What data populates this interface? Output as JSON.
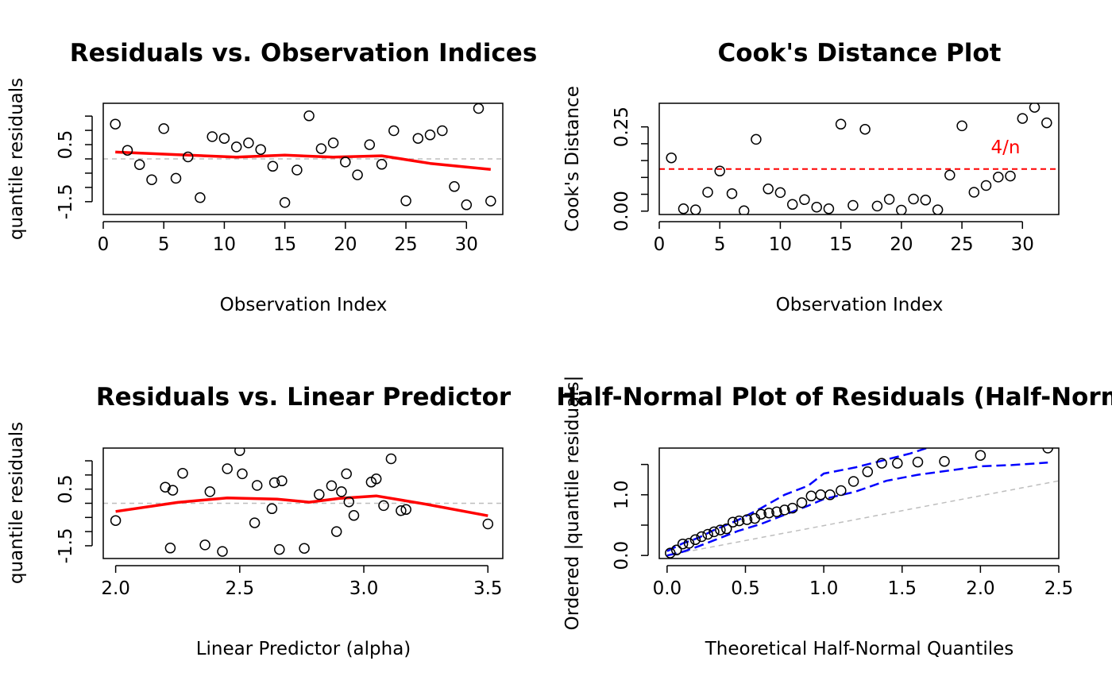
{
  "chart_data": [
    {
      "id": "p1",
      "type": "scatter",
      "title": "Residuals vs. Observation Indices",
      "xlabel": "Observation Index",
      "ylabel": "quantile residuals",
      "xlim": [
        0,
        33
      ],
      "ylim": [
        -1.95,
        1.95
      ],
      "x_ticks": [
        0,
        5,
        10,
        15,
        20,
        25,
        30
      ],
      "x_tick_labels": [
        "0",
        "5",
        "10",
        "15",
        "20",
        "25",
        "30"
      ],
      "y_ticks": [
        -1.5,
        -1.0,
        -0.5,
        0.0,
        0.5,
        1.0,
        1.5
      ],
      "y_tick_labels": [
        "-1.5",
        "",
        "",
        "",
        "0.5",
        "",
        ""
      ],
      "x": [
        1,
        2,
        3,
        4,
        5,
        6,
        7,
        8,
        9,
        10,
        11,
        12,
        13,
        14,
        15,
        16,
        17,
        18,
        19,
        20,
        21,
        22,
        23,
        24,
        25,
        26,
        27,
        28,
        29,
        30,
        31,
        32
      ],
      "y": [
        1.22,
        0.3,
        -0.2,
        -0.73,
        1.06,
        -0.68,
        0.07,
        -1.36,
        0.78,
        0.72,
        0.42,
        0.56,
        0.33,
        -0.26,
        -1.53,
        -0.39,
        1.51,
        0.36,
        0.56,
        -0.11,
        -0.56,
        0.5,
        -0.19,
        0.99,
        -1.47,
        0.72,
        0.84,
        0.99,
        -0.97,
        -1.61,
        1.77,
        -1.48
      ],
      "hline": {
        "y": 0,
        "color": "#bebebe"
      },
      "smooth": {
        "color": "#ff0000",
        "x": [
          1,
          6,
          11,
          15,
          19,
          23,
          27,
          32
        ],
        "y": [
          0.24,
          0.15,
          0.06,
          0.13,
          0.06,
          0.11,
          -0.16,
          -0.37
        ]
      }
    },
    {
      "id": "p2",
      "type": "scatter",
      "title": "Cook's Distance Plot",
      "xlabel": "Observation Index",
      "ylabel": "Cook's Distance",
      "xlim": [
        0,
        33
      ],
      "ylim": [
        -0.01,
        0.32
      ],
      "x_ticks": [
        0,
        5,
        10,
        15,
        20,
        25,
        30
      ],
      "x_tick_labels": [
        "0",
        "5",
        "10",
        "15",
        "20",
        "25",
        "30"
      ],
      "y_ticks": [
        0.0,
        0.05,
        0.1,
        0.15,
        0.2,
        0.25
      ],
      "y_tick_labels": [
        "0.00",
        "",
        "",
        "",
        "",
        "0.25"
      ],
      "x": [
        1,
        2,
        3,
        4,
        5,
        6,
        7,
        8,
        9,
        10,
        11,
        12,
        13,
        14,
        15,
        16,
        17,
        18,
        19,
        20,
        21,
        22,
        23,
        24,
        25,
        26,
        27,
        28,
        29,
        30,
        31,
        32
      ],
      "y": [
        0.158,
        0.007,
        0.004,
        0.056,
        0.119,
        0.052,
        0.001,
        0.213,
        0.066,
        0.055,
        0.02,
        0.034,
        0.012,
        0.007,
        0.258,
        0.017,
        0.243,
        0.015,
        0.035,
        0.003,
        0.036,
        0.033,
        0.004,
        0.107,
        0.253,
        0.056,
        0.076,
        0.101,
        0.104,
        0.275,
        0.308,
        0.262
      ],
      "hline": {
        "y": 0.125,
        "color": "#ff0000",
        "label": "4/n"
      }
    },
    {
      "id": "p3",
      "type": "scatter",
      "title": "Residuals vs. Linear Predictor",
      "xlabel": "Linear Predictor (alpha)",
      "ylabel": "quantile residuals",
      "xlim": [
        1.95,
        3.56
      ],
      "ylim": [
        -1.95,
        1.95
      ],
      "x_ticks": [
        2.0,
        2.5,
        3.0,
        3.5
      ],
      "x_tick_labels": [
        "2.0",
        "2.5",
        "3.0",
        "3.5"
      ],
      "y_ticks": [
        -1.5,
        -1.0,
        -0.5,
        0.0,
        0.5,
        1.0,
        1.5
      ],
      "y_tick_labels": [
        "-1.5",
        "",
        "",
        "",
        "0.5",
        "",
        ""
      ],
      "x": [
        2.0,
        2.2,
        2.22,
        2.23,
        2.27,
        2.36,
        2.38,
        2.43,
        2.45,
        2.5,
        2.51,
        2.56,
        2.57,
        2.63,
        2.64,
        2.66,
        2.67,
        2.76,
        2.82,
        2.87,
        2.89,
        2.91,
        2.93,
        2.94,
        2.96,
        3.03,
        3.05,
        3.08,
        3.11,
        3.15,
        3.17,
        3.5
      ],
      "y": [
        -0.61,
        0.57,
        -1.58,
        0.46,
        1.06,
        -1.47,
        0.41,
        -1.7,
        1.22,
        1.86,
        1.04,
        -0.69,
        0.63,
        -0.19,
        0.73,
        -1.63,
        0.79,
        -1.59,
        0.31,
        0.62,
        -1.0,
        0.41,
        1.04,
        0.05,
        -0.43,
        0.75,
        0.86,
        -0.08,
        1.57,
        -0.26,
        -0.22,
        -0.73
      ],
      "hline": {
        "y": 0,
        "color": "#bebebe"
      },
      "smooth": {
        "color": "#ff0000",
        "x": [
          2.0,
          2.25,
          2.45,
          2.65,
          2.78,
          2.9,
          3.05,
          3.25,
          3.5
        ],
        "y": [
          -0.29,
          0.03,
          0.19,
          0.15,
          0.04,
          0.17,
          0.26,
          -0.03,
          -0.44
        ]
      }
    },
    {
      "id": "p4",
      "type": "scatter",
      "title": "Half-Normal Plot of Residuals (Half-Normal)",
      "xlabel": "Theoretical Half-Normal Quantiles",
      "ylabel": "Ordered |quantile residuals|",
      "xlim": [
        -0.05,
        2.5
      ],
      "ylim": [
        -0.05,
        1.77
      ],
      "x_ticks": [
        0.0,
        0.5,
        1.0,
        1.5,
        2.0,
        2.5
      ],
      "x_tick_labels": [
        "0.0",
        "0.5",
        "1.0",
        "1.5",
        "2.0",
        "2.5"
      ],
      "y_ticks": [
        0.0,
        0.5,
        1.0,
        1.5
      ],
      "y_tick_labels": [
        "0.0",
        "",
        "1.0",
        ""
      ],
      "x": [
        0.02,
        0.06,
        0.1,
        0.14,
        0.18,
        0.22,
        0.26,
        0.3,
        0.34,
        0.38,
        0.42,
        0.46,
        0.51,
        0.56,
        0.6,
        0.65,
        0.7,
        0.75,
        0.8,
        0.86,
        0.92,
        0.98,
        1.04,
        1.11,
        1.19,
        1.28,
        1.37,
        1.47,
        1.6,
        1.77,
        2.0,
        2.43
      ],
      "y": [
        0.04,
        0.09,
        0.19,
        0.2,
        0.26,
        0.31,
        0.35,
        0.39,
        0.42,
        0.44,
        0.55,
        0.57,
        0.59,
        0.61,
        0.68,
        0.7,
        0.72,
        0.75,
        0.78,
        0.87,
        0.98,
        1.0,
        1.0,
        1.07,
        1.22,
        1.38,
        1.52,
        1.52,
        1.54,
        1.55,
        1.65,
        1.77
      ],
      "reference_line": {
        "color": "#bebebe",
        "x": [
          0,
          2.5
        ],
        "y": [
          0,
          1.23
        ]
      },
      "envelope": {
        "color": "#0000ff",
        "upper": {
          "x": [
            0.0,
            0.1,
            0.2,
            0.3,
            0.45,
            0.6,
            0.75,
            0.9,
            1.0,
            1.2,
            1.4,
            1.55,
            1.68
          ],
          "y": [
            0.07,
            0.2,
            0.29,
            0.42,
            0.58,
            0.78,
            1.0,
            1.15,
            1.35,
            1.45,
            1.58,
            1.68,
            1.79
          ]
        },
        "lower": {
          "x": [
            0.0,
            0.1,
            0.2,
            0.3,
            0.45,
            0.6,
            0.75,
            0.9,
            1.0,
            1.2,
            1.4,
            1.6,
            1.8,
            2.0,
            2.2,
            2.43
          ],
          "y": [
            0.0,
            0.06,
            0.15,
            0.25,
            0.4,
            0.52,
            0.67,
            0.82,
            0.93,
            1.05,
            1.23,
            1.33,
            1.4,
            1.47,
            1.49,
            1.53
          ]
        }
      }
    }
  ]
}
